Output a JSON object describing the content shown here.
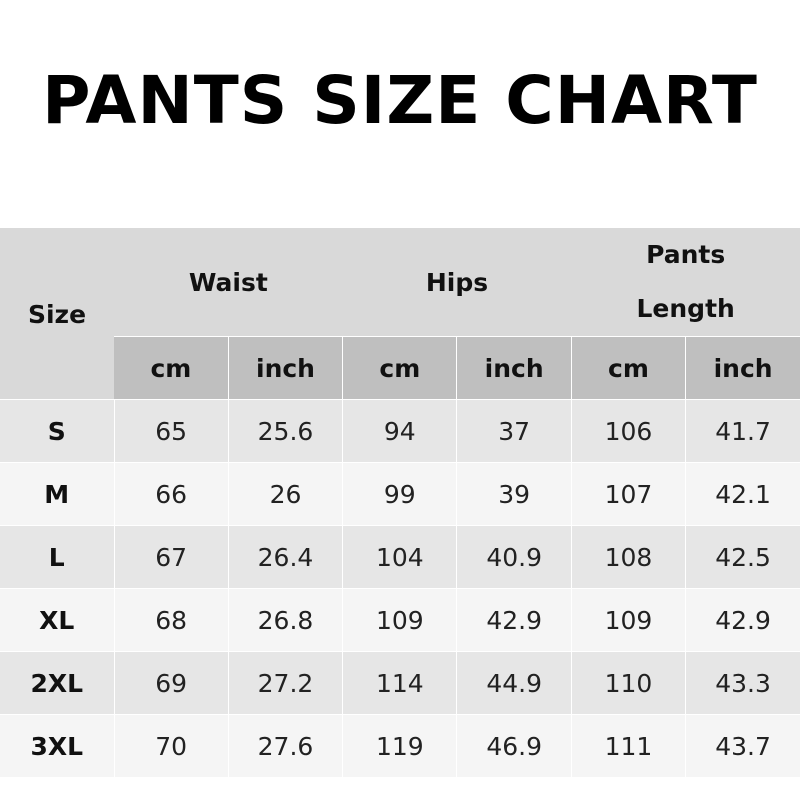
{
  "title": "PANTS SIZE CHART",
  "headers": {
    "size": "Size",
    "waist": "Waist",
    "hips": "Hips",
    "length_line1": "Pants",
    "length_line2": "Length"
  },
  "units": [
    "cm",
    "inch",
    "cm",
    "inch",
    "cm",
    "inch"
  ],
  "rows": [
    [
      "S",
      "65",
      "25.6",
      "94",
      "37",
      "106",
      "41.7"
    ],
    [
      "M",
      "66",
      "26",
      "99",
      "39",
      "107",
      "42.1"
    ],
    [
      "L",
      "67",
      "26.4",
      "104",
      "40.9",
      "108",
      "42.5"
    ],
    [
      "XL",
      "68",
      "26.8",
      "109",
      "42.9",
      "109",
      "42.9"
    ],
    [
      "2XL",
      "69",
      "27.2",
      "114",
      "44.9",
      "110",
      "43.3"
    ],
    [
      "3XL",
      "70",
      "27.6",
      "119",
      "46.9",
      "111",
      "43.7"
    ]
  ],
  "colors": {
    "header": "#d9d9d9",
    "unit_row": "#bfbfbf",
    "row_odd": "#e6e6e6",
    "row_even": "#f5f5f5"
  }
}
